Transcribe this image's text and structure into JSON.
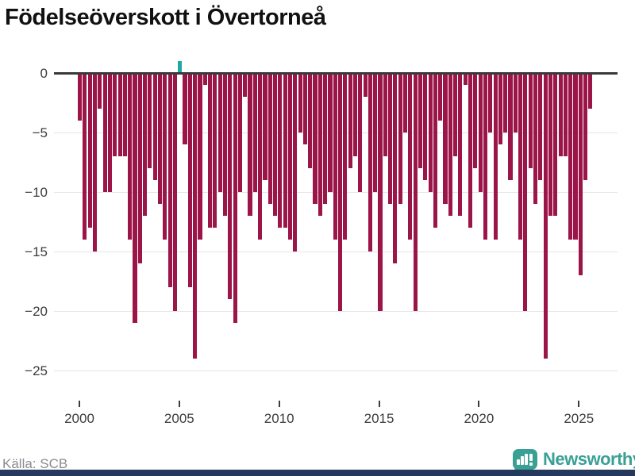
{
  "title": "Födelseöverskott i Övertorneå",
  "footer": {
    "source": "Källa: SCB",
    "brand": "Newsworthy"
  },
  "colors": {
    "negative_bar": "#9c1549",
    "positive_bar": "#1fa9a5",
    "brand_teal": "#3aa095",
    "bottom_strip": "#25395e",
    "grid": "#e4e4e4",
    "zero_line": "#3a3a3a",
    "axis_text": "#3c3c3c",
    "source_text": "#8b8b92"
  },
  "chart_data": {
    "type": "bar",
    "title": "Födelseöverskott i Övertorneå",
    "frequency": "quarterly",
    "x_start_year": 2000,
    "x_start_quarter": 1,
    "values": [
      -4,
      -14,
      -13,
      -15,
      -3,
      -10,
      -10,
      -7,
      -7,
      -7,
      -14,
      -21,
      -16,
      -12,
      -8,
      -9,
      -11,
      -14,
      -18,
      -20,
      1,
      -6,
      -18,
      -24,
      -14,
      -1,
      -13,
      -13,
      -10,
      -12,
      -19,
      -21,
      -10,
      -2,
      -12,
      -10,
      -14,
      -9,
      -11,
      -12,
      -13,
      -13,
      -14,
      -15,
      -5,
      -6,
      -8,
      -11,
      -12,
      -11,
      -10,
      -14,
      -20,
      -14,
      -8,
      -7,
      -10,
      -2,
      -15,
      -10,
      -20,
      -7,
      -11,
      -16,
      -11,
      -5,
      -14,
      -20,
      -8,
      -9,
      -10,
      -13,
      -4,
      -11,
      -12,
      -7,
      -12,
      -1,
      -13,
      -8,
      -10,
      -14,
      -5,
      -14,
      -6,
      -5,
      -9,
      -5,
      -14,
      -20,
      -8,
      -11,
      -9,
      -24,
      -12,
      -12,
      -7,
      -7,
      -14,
      -14,
      -17,
      -9,
      -3
    ],
    "y_ticks": [
      0,
      -5,
      -10,
      -15,
      -20,
      -25
    ],
    "x_ticks": [
      2000,
      2005,
      2010,
      2015,
      2020,
      2025
    ],
    "ylim": [
      -25.5,
      1.5
    ],
    "xlabel": "",
    "ylabel": "",
    "grid": "horizontal",
    "legend": "none"
  }
}
